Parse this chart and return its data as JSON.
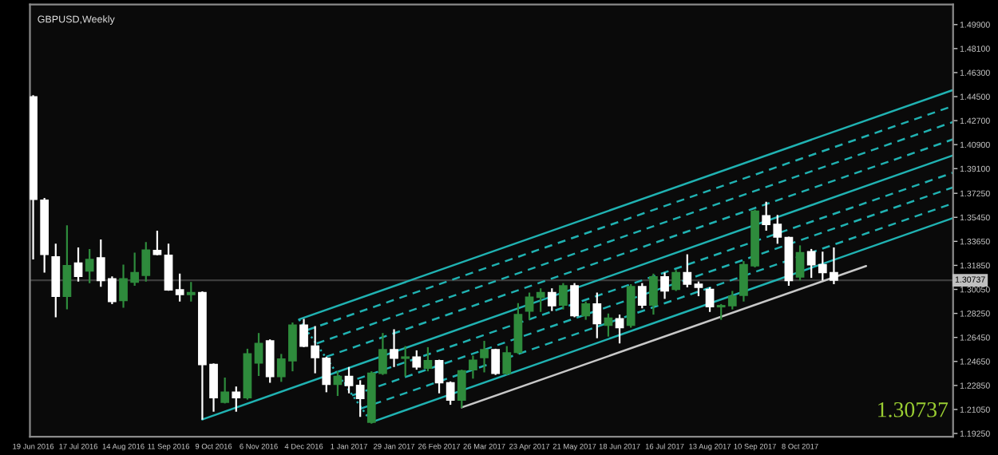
{
  "chart_data": {
    "type": "candlestick",
    "title": "GBPUSD,Weekly",
    "x": [
      "2016-06-19",
      "2016-06-26",
      "2016-07-03",
      "2016-07-10",
      "2016-07-17",
      "2016-07-24",
      "2016-07-31",
      "2016-08-07",
      "2016-08-14",
      "2016-08-21",
      "2016-08-28",
      "2016-09-04",
      "2016-09-11",
      "2016-09-18",
      "2016-09-25",
      "2016-10-02",
      "2016-10-09",
      "2016-10-16",
      "2016-10-23",
      "2016-10-30",
      "2016-11-06",
      "2016-11-13",
      "2016-11-20",
      "2016-11-27",
      "2016-12-04",
      "2016-12-11",
      "2016-12-18",
      "2016-12-25",
      "2017-01-01",
      "2017-01-08",
      "2017-01-15",
      "2017-01-22",
      "2017-01-29",
      "2017-02-05",
      "2017-02-12",
      "2017-02-19",
      "2017-02-26",
      "2017-03-05",
      "2017-03-12",
      "2017-03-19",
      "2017-03-26",
      "2017-04-02",
      "2017-04-09",
      "2017-04-16",
      "2017-04-23",
      "2017-04-30",
      "2017-05-07",
      "2017-05-14",
      "2017-05-21",
      "2017-05-28",
      "2017-06-04",
      "2017-06-11",
      "2017-06-18",
      "2017-06-25",
      "2017-07-02",
      "2017-07-09",
      "2017-07-16",
      "2017-07-23",
      "2017-07-30",
      "2017-08-06",
      "2017-08-13",
      "2017-08-20",
      "2017-08-27",
      "2017-09-03",
      "2017-09-10",
      "2017-09-17",
      "2017-09-24",
      "2017-10-01",
      "2017-10-08",
      "2017-10-15",
      "2017-10-22",
      "2017-10-29"
    ],
    "ohlc": [
      [
        1.4448,
        1.446,
        1.3229,
        1.3681
      ],
      [
        1.3674,
        1.369,
        1.3131,
        1.3268
      ],
      [
        1.3249,
        1.3347,
        1.2796,
        1.2954
      ],
      [
        1.2954,
        1.3485,
        1.2855,
        1.3182
      ],
      [
        1.3202,
        1.332,
        1.3064,
        1.3103
      ],
      [
        1.3143,
        1.3308,
        1.3052,
        1.3229
      ],
      [
        1.3241,
        1.3379,
        1.3025,
        1.3072
      ],
      [
        1.3084,
        1.3103,
        1.2895,
        1.2914
      ],
      [
        1.2922,
        1.319,
        1.2867,
        1.3084
      ],
      [
        1.306,
        1.328,
        1.3032,
        1.3131
      ],
      [
        1.3111,
        1.3359,
        1.3064,
        1.33
      ],
      [
        1.3296,
        1.3445,
        1.3261,
        1.3268
      ],
      [
        1.3261,
        1.3347,
        1.2995,
        1.3001
      ],
      [
        1.3001,
        1.3123,
        1.2914,
        1.2966
      ],
      [
        1.2966,
        1.306,
        1.2914,
        1.2981
      ],
      [
        1.2981,
        1.299,
        1.2029,
        1.2442
      ],
      [
        1.2442,
        1.245,
        1.2088,
        1.2194
      ],
      [
        1.2159,
        1.2344,
        1.215,
        1.2234
      ],
      [
        1.2234,
        1.2277,
        1.2088,
        1.2194
      ],
      [
        1.2194,
        1.256,
        1.2179,
        1.2521
      ],
      [
        1.2454,
        1.2678,
        1.2356,
        1.26
      ],
      [
        1.2619,
        1.263,
        1.2305,
        1.2352
      ],
      [
        1.2352,
        1.2521,
        1.2312,
        1.2482
      ],
      [
        1.247,
        1.2757,
        1.2391,
        1.2737
      ],
      [
        1.2737,
        1.2784,
        1.2572,
        1.258
      ],
      [
        1.258,
        1.273,
        1.2376,
        1.2494
      ],
      [
        1.2489,
        1.25,
        1.2234,
        1.2293
      ],
      [
        1.2293,
        1.2391,
        1.2206,
        1.2352
      ],
      [
        1.2352,
        1.2423,
        1.2226,
        1.2285
      ],
      [
        1.2285,
        1.2324,
        1.2049,
        1.2187
      ],
      [
        1.201,
        1.2391,
        1.1998,
        1.2376
      ],
      [
        1.2376,
        1.2678,
        1.2364,
        1.2553
      ],
      [
        1.2553,
        1.2706,
        1.2423,
        1.2489
      ],
      [
        1.2489,
        1.258,
        1.2352,
        1.2498
      ],
      [
        1.2498,
        1.2548,
        1.2403,
        1.2423
      ],
      [
        1.2415,
        1.2572,
        1.2391,
        1.247
      ],
      [
        1.247,
        1.2478,
        1.2226,
        1.2305
      ],
      [
        1.2305,
        1.2315,
        1.214,
        1.2175
      ],
      [
        1.2175,
        1.2403,
        1.2117,
        1.2395
      ],
      [
        1.2403,
        1.2509,
        1.2336,
        1.2474
      ],
      [
        1.2494,
        1.2619,
        1.2383,
        1.2553
      ],
      [
        1.2553,
        1.256,
        1.2364,
        1.2376
      ],
      [
        1.2376,
        1.258,
        1.2364,
        1.2529
      ],
      [
        1.2533,
        1.2902,
        1.2521,
        1.2816
      ],
      [
        1.2843,
        1.2981,
        1.2777,
        1.2946
      ],
      [
        1.2946,
        1.3013,
        1.2836,
        1.2981
      ],
      [
        1.2981,
        1.3013,
        1.2843,
        1.2883
      ],
      [
        1.2887,
        1.3052,
        1.2855,
        1.3032
      ],
      [
        1.3032,
        1.3052,
        1.2796,
        1.2808
      ],
      [
        1.2808,
        1.2914,
        1.2777,
        1.2895
      ],
      [
        1.2895,
        1.2981,
        1.2639,
        1.2749
      ],
      [
        1.2737,
        1.2824,
        1.2651,
        1.2789
      ],
      [
        1.2784,
        1.2816,
        1.26,
        1.2718
      ],
      [
        1.2737,
        1.3044,
        1.2718,
        1.3025
      ],
      [
        1.3025,
        1.3052,
        1.2863,
        1.2887
      ],
      [
        1.2887,
        1.3123,
        1.2816,
        1.3099
      ],
      [
        1.3099,
        1.3131,
        1.2934,
        1.2993
      ],
      [
        1.3005,
        1.315,
        1.2993,
        1.3131
      ],
      [
        1.3131,
        1.3268,
        1.302,
        1.3044
      ],
      [
        1.3044,
        1.3064,
        1.2954,
        1.302
      ],
      [
        1.3005,
        1.302,
        1.2836,
        1.2875
      ],
      [
        1.2875,
        1.2895,
        1.2777,
        1.2883
      ],
      [
        1.2883,
        1.2993,
        1.2855,
        1.2954
      ],
      [
        1.2961,
        1.3217,
        1.2914,
        1.319
      ],
      [
        1.3182,
        1.3603,
        1.317,
        1.3591
      ],
      [
        1.3556,
        1.3662,
        1.3445,
        1.3492
      ],
      [
        1.3492,
        1.3563,
        1.3347,
        1.3398
      ],
      [
        1.3394,
        1.34,
        1.3032,
        1.3072
      ],
      [
        1.3099,
        1.3335,
        1.3072,
        1.328
      ],
      [
        1.3288,
        1.3308,
        1.3091,
        1.319
      ],
      [
        1.319,
        1.3288,
        1.3072,
        1.3131
      ],
      [
        1.3131,
        1.332,
        1.3044,
        1.3074
      ]
    ],
    "colors": [
      "#ffffff",
      "#ffffff",
      "#ffffff",
      "#2e8b3c",
      "#ffffff",
      "#2e8b3c",
      "#ffffff",
      "#ffffff",
      "#2e8b3c",
      "#2e8b3c",
      "#2e8b3c",
      "#ffffff",
      "#ffffff",
      "#ffffff",
      "#2e8b3c",
      "#ffffff",
      "#ffffff",
      "#2e8b3c",
      "#ffffff",
      "#2e8b3c",
      "#2e8b3c",
      "#ffffff",
      "#2e8b3c",
      "#2e8b3c",
      "#ffffff",
      "#ffffff",
      "#ffffff",
      "#2e8b3c",
      "#ffffff",
      "#ffffff",
      "#2e8b3c",
      "#2e8b3c",
      "#ffffff",
      "#2e8b3c",
      "#ffffff",
      "#2e8b3c",
      "#ffffff",
      "#ffffff",
      "#2e8b3c",
      "#2e8b3c",
      "#2e8b3c",
      "#ffffff",
      "#2e8b3c",
      "#2e8b3c",
      "#2e8b3c",
      "#2e8b3c",
      "#ffffff",
      "#2e8b3c",
      "#ffffff",
      "#2e8b3c",
      "#ffffff",
      "#2e8b3c",
      "#ffffff",
      "#2e8b3c",
      "#ffffff",
      "#2e8b3c",
      "#ffffff",
      "#2e8b3c",
      "#ffffff",
      "#ffffff",
      "#ffffff",
      "#2e8b3c",
      "#2e8b3c",
      "#2e8b3c",
      "#2e8b3c",
      "#ffffff",
      "#ffffff",
      "#ffffff",
      "#2e8b3c",
      "#ffffff",
      "#ffffff",
      "#ffffff"
    ],
    "series": [
      {
        "type": "line",
        "color": "#20b2b2",
        "line_style": "solid",
        "x": [
          "2016-12-01",
          "2018-01-11"
        ],
        "values": [
          1.278,
          1.45
        ]
      },
      {
        "type": "line",
        "color": "#20b2b2",
        "line_style": "dashed",
        "x": [
          "2016-12-06",
          "2018-01-11"
        ],
        "values": [
          1.27,
          1.438
        ]
      },
      {
        "type": "line",
        "color": "#20b2b2",
        "line_style": "dashed",
        "x": [
          "2016-12-12",
          "2018-01-11"
        ],
        "values": [
          1.26,
          1.426
        ]
      },
      {
        "type": "line",
        "color": "#20b2b2",
        "line_style": "dashed",
        "x": [
          "2016-12-18",
          "2018-01-11"
        ],
        "values": [
          1.25,
          1.413
        ]
      },
      {
        "type": "line",
        "color": "#20b2b2",
        "line_style": "solid",
        "x": [
          "2016-10-02",
          "2018-01-11"
        ],
        "values": [
          1.203,
          1.401
        ]
      },
      {
        "type": "line",
        "color": "#20b2b2",
        "line_style": "dashed",
        "x": [
          "2016-12-29",
          "2018-01-11"
        ],
        "values": [
          1.23,
          1.388
        ]
      },
      {
        "type": "line",
        "color": "#20b2b2",
        "line_style": "dashed",
        "x": [
          "2017-01-03",
          "2018-01-11"
        ],
        "values": [
          1.221,
          1.377
        ]
      },
      {
        "type": "line",
        "color": "#20b2b2",
        "line_style": "dashed",
        "x": [
          "2017-01-08",
          "2018-01-11"
        ],
        "values": [
          1.211,
          1.365
        ]
      },
      {
        "type": "line",
        "color": "#20b2b2",
        "line_style": "solid",
        "x": [
          "2017-01-15",
          "2018-01-11"
        ],
        "values": [
          1.201,
          1.354
        ]
      },
      {
        "type": "line",
        "color": "#20b2b2",
        "line_style": "dotted",
        "x": [
          "2016-12-01",
          "2017-01-15"
        ],
        "values": [
          1.278,
          1.201
        ]
      },
      {
        "type": "line",
        "color": "#c8c8c8",
        "line_style": "solid",
        "x": [
          "2017-03-12",
          "2017-11-18"
        ],
        "values": [
          1.212,
          1.318
        ]
      }
    ],
    "xlim": [
      "2016-06-17",
      "2018-01-11"
    ],
    "xticks": [
      {
        "value": "2016-06-19",
        "label": "19 Jun 2016"
      },
      {
        "value": "2016-07-17",
        "label": "17 Jul 2016"
      },
      {
        "value": "2016-08-14",
        "label": "14 Aug 2016"
      },
      {
        "value": "2016-09-11",
        "label": "11 Sep 2016"
      },
      {
        "value": "2016-10-09",
        "label": "9 Oct 2016"
      },
      {
        "value": "2016-11-06",
        "label": "6 Nov 2016"
      },
      {
        "value": "2016-12-04",
        "label": "4 Dec 2016"
      },
      {
        "value": "2017-01-01",
        "label": "1 Jan 2017"
      },
      {
        "value": "2017-01-29",
        "label": "29 Jan 2017"
      },
      {
        "value": "2017-02-26",
        "label": "26 Feb 2017"
      },
      {
        "value": "2017-03-26",
        "label": "26 Mar 2017"
      },
      {
        "value": "2017-04-23",
        "label": "23 Apr 2017"
      },
      {
        "value": "2017-05-21",
        "label": "21 May 2017"
      },
      {
        "value": "2017-06-18",
        "label": "18 Jun 2017"
      },
      {
        "value": "2017-07-16",
        "label": "16 Jul 2017"
      },
      {
        "value": "2017-08-13",
        "label": "13 Aug 2017"
      },
      {
        "value": "2017-09-10",
        "label": "10 Sep 2017"
      },
      {
        "value": "2017-10-08",
        "label": "8 Oct 2017"
      }
    ],
    "ylim": [
      1.19,
      1.514
    ],
    "yticks": [
      {
        "value": 1.499,
        "label": "1.49900"
      },
      {
        "value": 1.481,
        "label": "1.48100"
      },
      {
        "value": 1.463,
        "label": "1.46300"
      },
      {
        "value": 1.445,
        "label": "1.44500"
      },
      {
        "value": 1.427,
        "label": "1.42700"
      },
      {
        "value": 1.409,
        "label": "1.40900"
      },
      {
        "value": 1.391,
        "label": "1.39100"
      },
      {
        "value": 1.3725,
        "label": "1.37250"
      },
      {
        "value": 1.3545,
        "label": "1.35450"
      },
      {
        "value": 1.3365,
        "label": "1.33650"
      },
      {
        "value": 1.3185,
        "label": "1.31850"
      },
      {
        "value": 1.3005,
        "label": "1.30050"
      },
      {
        "value": 1.2825,
        "label": "1.28250"
      },
      {
        "value": 1.2645,
        "label": "1.26450"
      },
      {
        "value": 1.2465,
        "label": "1.24650"
      },
      {
        "value": 1.2285,
        "label": "1.22850"
      },
      {
        "value": 1.2105,
        "label": "1.21050"
      },
      {
        "value": 1.1925,
        "label": "1.19250"
      }
    ],
    "ref_lines": [
      {
        "axis": "y",
        "value": 1.30737,
        "label": "1.30737",
        "color": "#3c3c3c"
      }
    ],
    "annotations": [
      "1.30737"
    ],
    "grid": false,
    "legend": false
  }
}
